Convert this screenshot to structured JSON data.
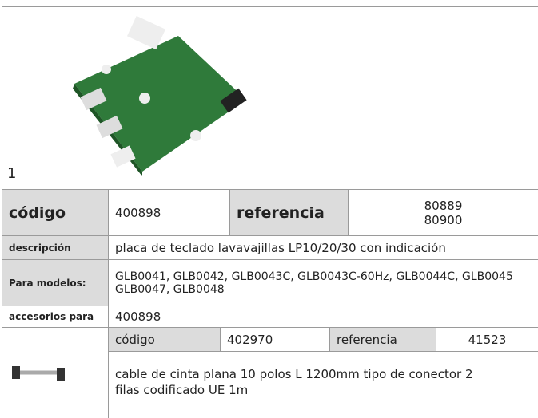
{
  "figure": {
    "label": "1"
  },
  "product": {
    "codigo_label": "código",
    "codigo": "400898",
    "referencia_label": "referencia",
    "referencias": [
      "80889",
      "80900"
    ],
    "descripcion_label": "descripción",
    "descripcion": "placa de teclado  lavavajillas LP10/20/30 con indicación",
    "modelos_label": "Para modelos:",
    "modelos": [
      "GLB0041, GLB0042, GLB0043C, GLB0043C-60Hz, GLB0044C, GLB0045",
      "GLB0047, GLB0048"
    ]
  },
  "accessories": {
    "label": "accesorios para",
    "parent": "400898",
    "items": [
      {
        "codigo_label": "código",
        "codigo": "402970",
        "referencia_label": "referencia",
        "referencia": "41523",
        "descripcion": "cable de cinta plana  10 polos L 1200mm tipo de conector 2 filas codificado UE 1m"
      }
    ]
  }
}
